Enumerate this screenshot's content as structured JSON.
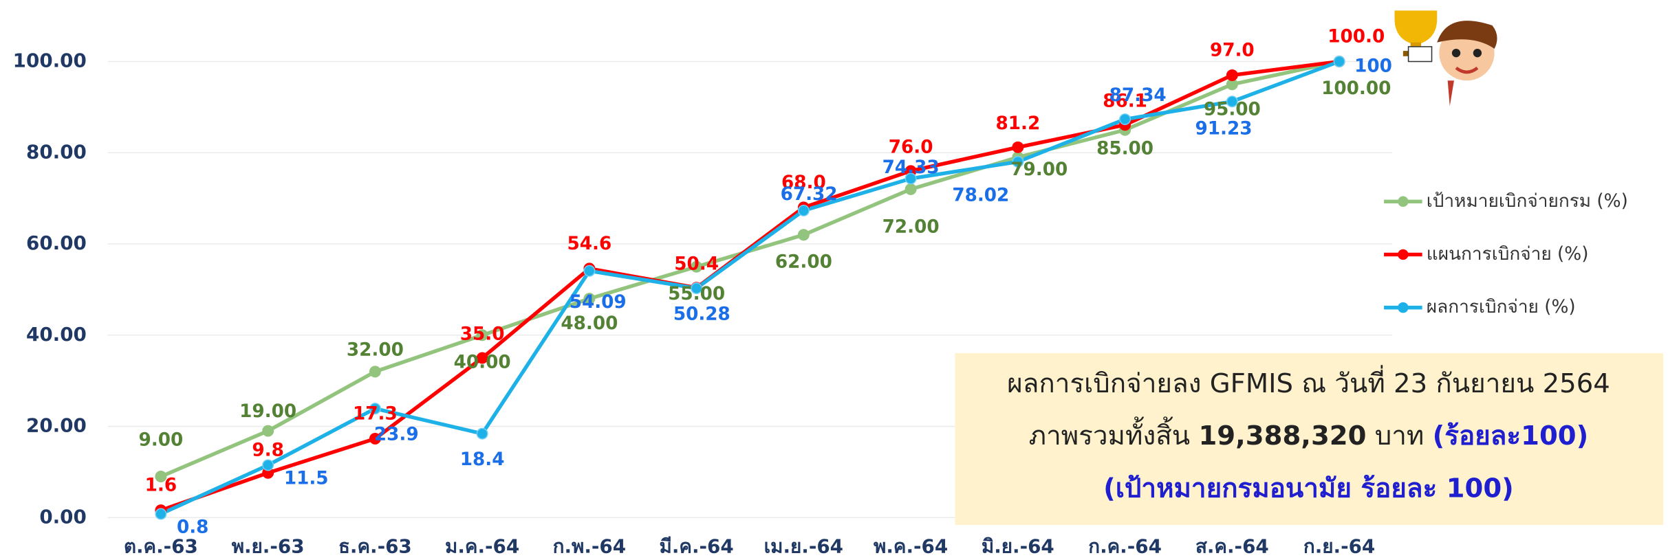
{
  "chart_data": {
    "type": "line",
    "categories": [
      "ต.ค.-63",
      "พ.ย.-63",
      "ธ.ค.-63",
      "ม.ค.-64",
      "ก.พ.-64",
      "มี.ค.-64",
      "เม.ย.-64",
      "พ.ค.-64",
      "มิ.ย.-64",
      "ก.ค.-64",
      "ส.ค.-64",
      "ก.ย.-64"
    ],
    "series": [
      {
        "name": "เป้าหมายเบิกจ่ายกรม (%)",
        "color": "#93c47d",
        "label_color": "#548235",
        "values": [
          9,
          19,
          32,
          40,
          48,
          55,
          62,
          72,
          79,
          85,
          95,
          100
        ],
        "value_labels": [
          "9.00",
          "19.00",
          "32.00",
          "40.00",
          "48.00",
          "55.00",
          "62.00",
          "72.00",
          "79.00",
          "85.00",
          "95.00",
          "100.00"
        ]
      },
      {
        "name": "แผนการเบิกจ่าย (%)",
        "color": "#ff0000",
        "label_color": "#ff0000",
        "values": [
          1.6,
          9.8,
          17.3,
          35,
          54.6,
          50.4,
          68,
          76,
          81.2,
          86.1,
          97,
          100
        ],
        "value_labels": [
          "1.6",
          "9.8",
          "17.3",
          "35.0",
          "54.6",
          "50.4",
          "68.0",
          "76.0",
          "81.2",
          "86.1",
          "97.0",
          "100.0"
        ]
      },
      {
        "name": "ผลการเบิกจ่าย (%)",
        "color": "#1eb1e8",
        "label_color": "#1a6ee8",
        "values": [
          0.8,
          11.5,
          23.9,
          18.4,
          54.09,
          50.28,
          67.32,
          74.33,
          78.02,
          87.34,
          91.23,
          100
        ]
      }
    ],
    "ylim": [
      0,
      100
    ],
    "yticks": [
      {
        "value": 0,
        "label": "0.00"
      },
      {
        "value": 20,
        "label": "20.00"
      },
      {
        "value": 40,
        "label": "40.00"
      },
      {
        "value": 60,
        "label": "60.00"
      },
      {
        "value": 80,
        "label": "80.00"
      },
      {
        "value": 100,
        "label": "100.00"
      }
    ],
    "grid": true,
    "legend": "right"
  },
  "textbox": {
    "line1": "ผลการเบิกจ่ายลง GFMIS ณ วันที่ 23 กันยายน 2564",
    "line2": {
      "prefix": "ภาพรวมทั้งสิ้น ",
      "amount": "19,388,320",
      "unit": " บาท ",
      "percent": "(ร้อยละ100)"
    },
    "line3": "(เป้าหมายกรมอนามัย ร้อยละ 100)"
  }
}
